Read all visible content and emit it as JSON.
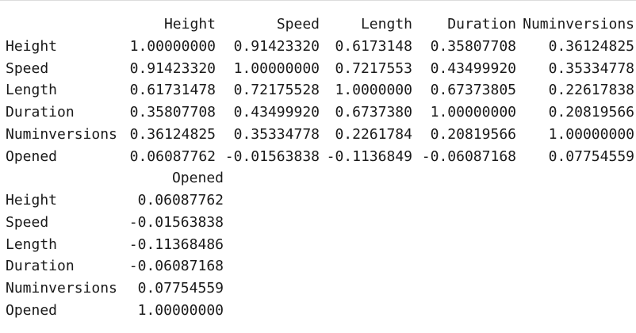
{
  "output": {
    "table1": {
      "headers": [
        "Height",
        "Speed",
        "Length",
        "Duration",
        "Numinversions"
      ],
      "rows": [
        {
          "name": "Height",
          "values": [
            "1.00000000",
            "0.91423320",
            "0.6173148",
            "0.35807708",
            "0.36124825"
          ]
        },
        {
          "name": "Speed",
          "values": [
            "0.91423320",
            "1.00000000",
            "0.7217553",
            "0.43499920",
            "0.35334778"
          ]
        },
        {
          "name": "Length",
          "values": [
            "0.61731478",
            "0.72175528",
            "1.0000000",
            "0.67373805",
            "0.22617838"
          ]
        },
        {
          "name": "Duration",
          "values": [
            "0.35807708",
            "0.43499920",
            "0.6737380",
            "1.00000000",
            "0.20819566"
          ]
        },
        {
          "name": "Numinversions",
          "values": [
            "0.36124825",
            "0.35334778",
            "0.2261784",
            "0.20819566",
            "1.00000000"
          ]
        },
        {
          "name": "Opened",
          "values": [
            "0.06087762",
            "-0.01563838",
            "-0.1136849",
            "-0.06087168",
            "0.07754559"
          ]
        }
      ]
    },
    "table2": {
      "headers": [
        "Opened"
      ],
      "rows": [
        {
          "name": "Height",
          "values": [
            "0.06087762"
          ]
        },
        {
          "name": "Speed",
          "values": [
            "-0.01563838"
          ]
        },
        {
          "name": "Length",
          "values": [
            "-0.11368486"
          ]
        },
        {
          "name": "Duration",
          "values": [
            "-0.06087168"
          ]
        },
        {
          "name": "Numinversions",
          "values": [
            "0.07754559"
          ]
        },
        {
          "name": "Opened",
          "values": [
            "1.00000000"
          ]
        }
      ]
    }
  }
}
